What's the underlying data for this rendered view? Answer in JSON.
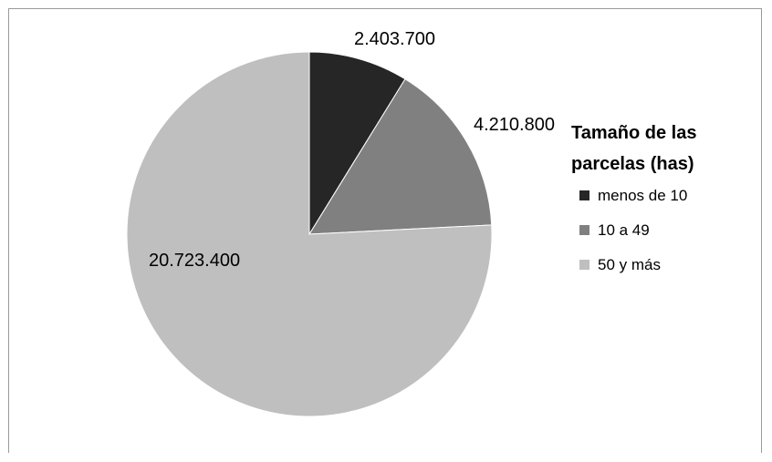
{
  "chart_data": {
    "type": "pie",
    "legend_title": [
      "Tamaño de las",
      "parcelas (has)"
    ],
    "legend_position": "right",
    "categories": [
      "menos de 10",
      "10 a 49",
      "50 y más"
    ],
    "values": [
      2403700,
      4210800,
      20723400
    ],
    "value_labels": [
      "2.403.700",
      "4.210.800",
      "20.723.400"
    ],
    "colors": [
      "#262626",
      "#808080",
      "#bfbfbf"
    ]
  }
}
